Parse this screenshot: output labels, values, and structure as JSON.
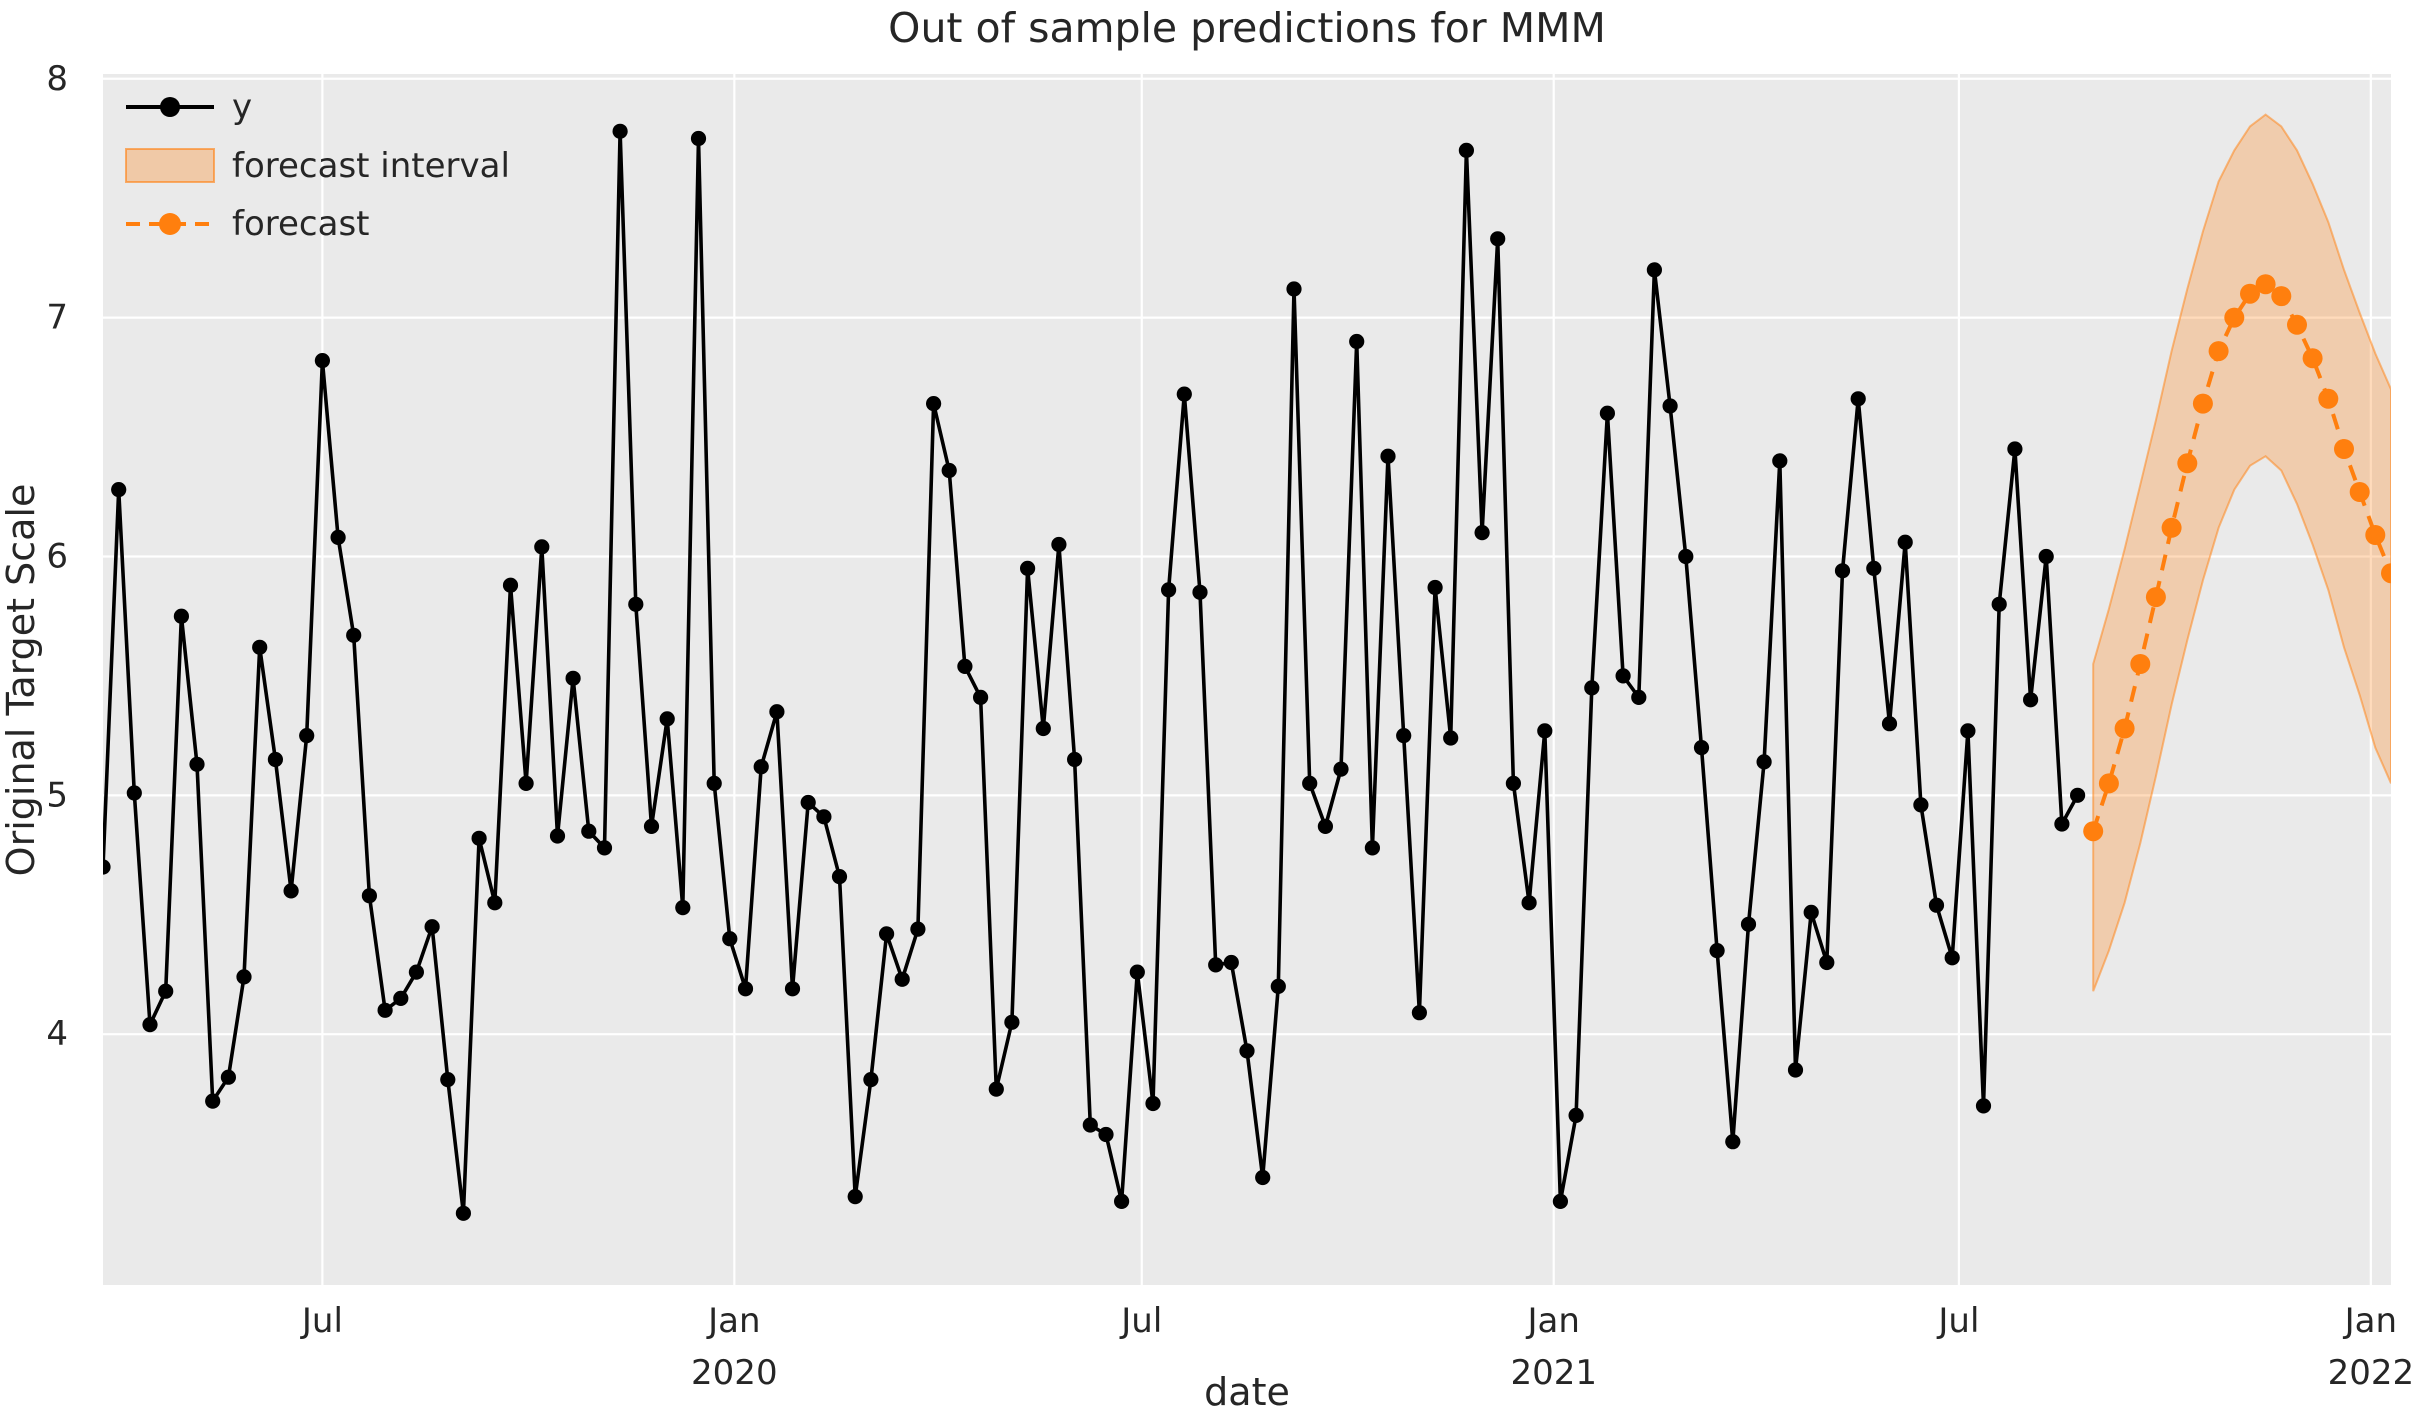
{
  "chart_data": {
    "type": "line",
    "title": "Out of sample predictions for MMM",
    "xlabel": "date",
    "ylabel": "Original Target Scale",
    "ylim": [
      2.95,
      8.02
    ],
    "grid": true,
    "legend_position": "upper-left",
    "legend": [
      "y",
      "forecast interval",
      "forecast"
    ],
    "colors": {
      "y_series": "#000000",
      "forecast": "#ff7f0e",
      "band_fill": "#ff7f0e",
      "band_alpha": 0.28,
      "plot_bg": "#eaeaea",
      "grid_color": "#ffffff",
      "text": "#262626"
    },
    "start_date": "2019-03-25",
    "freq_days": 7,
    "y_ticks": [
      "4",
      "5",
      "6",
      "7",
      "8"
    ],
    "y_tick_values": [
      4,
      5,
      6,
      7,
      8
    ],
    "x_ticks": [
      {
        "label": "Jul",
        "sub": "",
        "date": "2019-07-01"
      },
      {
        "label": "Jan",
        "sub": "2020",
        "date": "2020-01-01"
      },
      {
        "label": "Jul",
        "sub": "",
        "date": "2020-07-01"
      },
      {
        "label": "Jan",
        "sub": "2021",
        "date": "2021-01-01"
      },
      {
        "label": "Jul",
        "sub": "",
        "date": "2021-07-01"
      },
      {
        "label": "Jan",
        "sub": "2022",
        "date": "2022-01-01"
      }
    ],
    "series": [
      {
        "name": "y",
        "start_index": 0,
        "values": [
          4.7,
          6.28,
          5.01,
          4.04,
          4.18,
          5.75,
          5.13,
          3.72,
          3.82,
          4.24,
          5.62,
          5.15,
          4.6,
          5.25,
          6.82,
          6.08,
          5.67,
          4.58,
          4.1,
          4.15,
          4.26,
          4.45,
          3.81,
          3.25,
          4.82,
          4.55,
          5.88,
          5.05,
          6.04,
          4.83,
          5.49,
          4.85,
          4.78,
          7.78,
          5.8,
          4.87,
          5.32,
          4.53,
          7.75,
          5.05,
          4.4,
          4.19,
          5.12,
          5.35,
          4.19,
          4.97,
          4.91,
          4.66,
          3.32,
          3.81,
          4.42,
          4.23,
          4.44,
          6.64,
          6.36,
          5.54,
          5.41,
          3.77,
          4.05,
          5.95,
          5.28,
          6.05,
          5.15,
          3.62,
          3.58,
          3.3,
          4.26,
          3.71,
          5.86,
          6.68,
          5.85,
          4.29,
          4.3,
          3.93,
          3.4,
          4.2,
          7.12,
          5.05,
          4.87,
          5.11,
          6.9,
          4.78,
          6.42,
          5.25,
          4.09,
          5.87,
          5.24,
          7.7,
          6.1,
          7.33,
          5.05,
          4.55,
          5.27,
          3.3,
          3.66,
          5.45,
          6.6,
          5.5,
          5.41,
          7.2,
          6.63,
          6.0,
          5.2,
          4.35,
          3.55,
          4.46,
          5.14,
          6.4,
          3.85,
          4.51,
          4.3,
          5.94,
          6.66,
          5.95,
          5.3,
          6.06,
          4.96,
          4.54,
          4.32,
          5.27,
          3.7,
          5.8,
          6.45,
          5.4,
          6.0,
          4.88,
          5.0
        ]
      },
      {
        "name": "forecast",
        "start_index": 127,
        "values": [
          4.85,
          5.05,
          5.28,
          5.55,
          5.83,
          6.12,
          6.39,
          6.64,
          6.86,
          7.0,
          7.1,
          7.14,
          7.09,
          6.97,
          6.83,
          6.66,
          6.45,
          6.27,
          6.09,
          5.93
        ]
      }
    ],
    "interval": {
      "name": "forecast interval",
      "start_index": 127,
      "upper": [
        5.55,
        5.78,
        6.03,
        6.3,
        6.57,
        6.86,
        7.12,
        7.36,
        7.57,
        7.7,
        7.8,
        7.85,
        7.8,
        7.7,
        7.56,
        7.4,
        7.2,
        7.02,
        6.85,
        6.7
      ],
      "lower": [
        4.18,
        4.35,
        4.55,
        4.8,
        5.08,
        5.38,
        5.65,
        5.9,
        6.12,
        6.28,
        6.38,
        6.42,
        6.36,
        6.22,
        6.05,
        5.86,
        5.62,
        5.42,
        5.2,
        5.05
      ]
    }
  }
}
